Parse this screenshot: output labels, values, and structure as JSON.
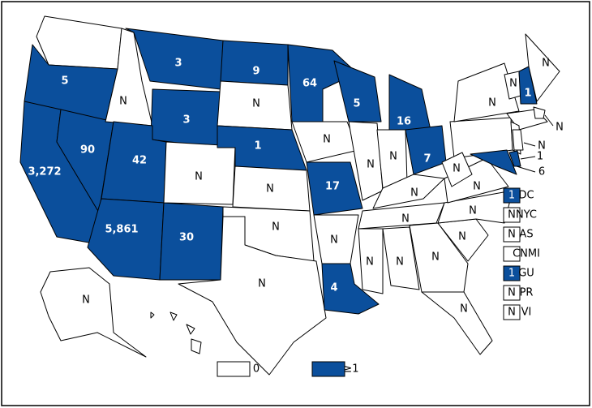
{
  "regions": [
    {
      "label": "5",
      "color": "#0b4f9c"
    },
    {
      "label": "3,272",
      "color": "#0b4f9c"
    },
    {
      "label": "90",
      "color": "#0b4f9c"
    },
    {
      "label": "N",
      "color": "#ffffff"
    },
    {
      "label": "3",
      "color": "#0b4f9c"
    },
    {
      "label": "3",
      "color": "#0b4f9c"
    },
    {
      "label": "42",
      "color": "#0b4f9c"
    },
    {
      "label": "5,861",
      "color": "#0b4f9c"
    },
    {
      "label": "30",
      "color": "#0b4f9c"
    },
    {
      "label": "N",
      "color": "#ffffff"
    },
    {
      "label": "9",
      "color": "#0b4f9c"
    },
    {
      "label": "N",
      "color": "#ffffff"
    },
    {
      "label": "1",
      "color": "#0b4f9c"
    },
    {
      "label": "N",
      "color": "#ffffff"
    },
    {
      "label": "N",
      "color": "#ffffff"
    },
    {
      "label": "N",
      "color": "#ffffff"
    },
    {
      "label": "64",
      "color": "#0b4f9c"
    },
    {
      "label": "N",
      "color": "#ffffff"
    },
    {
      "label": "17",
      "color": "#0b4f9c"
    },
    {
      "label": "N",
      "color": "#ffffff"
    },
    {
      "label": "4",
      "color": "#0b4f9c"
    },
    {
      "label": "5",
      "color": "#0b4f9c"
    },
    {
      "label": "16",
      "color": "#0b4f9c"
    },
    {
      "label": "N",
      "color": "#ffffff"
    },
    {
      "label": "N",
      "color": "#ffffff"
    },
    {
      "label": "7",
      "color": "#0b4f9c"
    },
    {
      "label": "N",
      "color": "#ffffff"
    },
    {
      "label": "N",
      "color": "#ffffff"
    },
    {
      "label": "N",
      "color": "#ffffff"
    },
    {
      "label": "N",
      "color": "#ffffff"
    },
    {
      "label": "N",
      "color": "#ffffff"
    },
    {
      "label": "N",
      "color": "#ffffff"
    },
    {
      "label": "N",
      "color": "#ffffff"
    },
    {
      "label": "N",
      "color": "#ffffff"
    },
    {
      "label": "N",
      "color": "#ffffff"
    },
    {
      "label": "N",
      "color": "#ffffff"
    },
    {
      "label": "N",
      "color": "#ffffff"
    },
    {
      "label": "N",
      "color": "#ffffff"
    },
    {
      "label": "1",
      "color": "#0b4f9c"
    },
    {
      "label": "N",
      "color": "#ffffff"
    },
    {
      "label": "6",
      "color": "#0b4f9c"
    },
    {
      "label": "1",
      "color": "#0b4f9c"
    },
    {
      "label": "N",
      "color": "#ffffff"
    },
    {
      "label": "N",
      "color": "#ffffff"
    },
    {
      "label": "N",
      "color": "#ffffff"
    }
  ],
  "territories": [
    {
      "name": "DC",
      "label": "1",
      "color": "#0b4f9c"
    },
    {
      "name": "NYC",
      "label": "N",
      "color": "#ffffff"
    },
    {
      "name": "AS",
      "label": "N",
      "color": "#ffffff"
    },
    {
      "name": "CNMI",
      "color": "#ffffff"
    },
    {
      "name": "GU",
      "label": "1",
      "color": "#0b4f9c"
    },
    {
      "name": "PR",
      "label": "N",
      "color": "#ffffff"
    },
    {
      "name": "VI",
      "label": "N",
      "color": "#ffffff"
    }
  ],
  "legend": [
    {
      "label": "0",
      "color": "#ffffff"
    },
    {
      "label": "≥1",
      "color": "#0b4f9c"
    }
  ]
}
